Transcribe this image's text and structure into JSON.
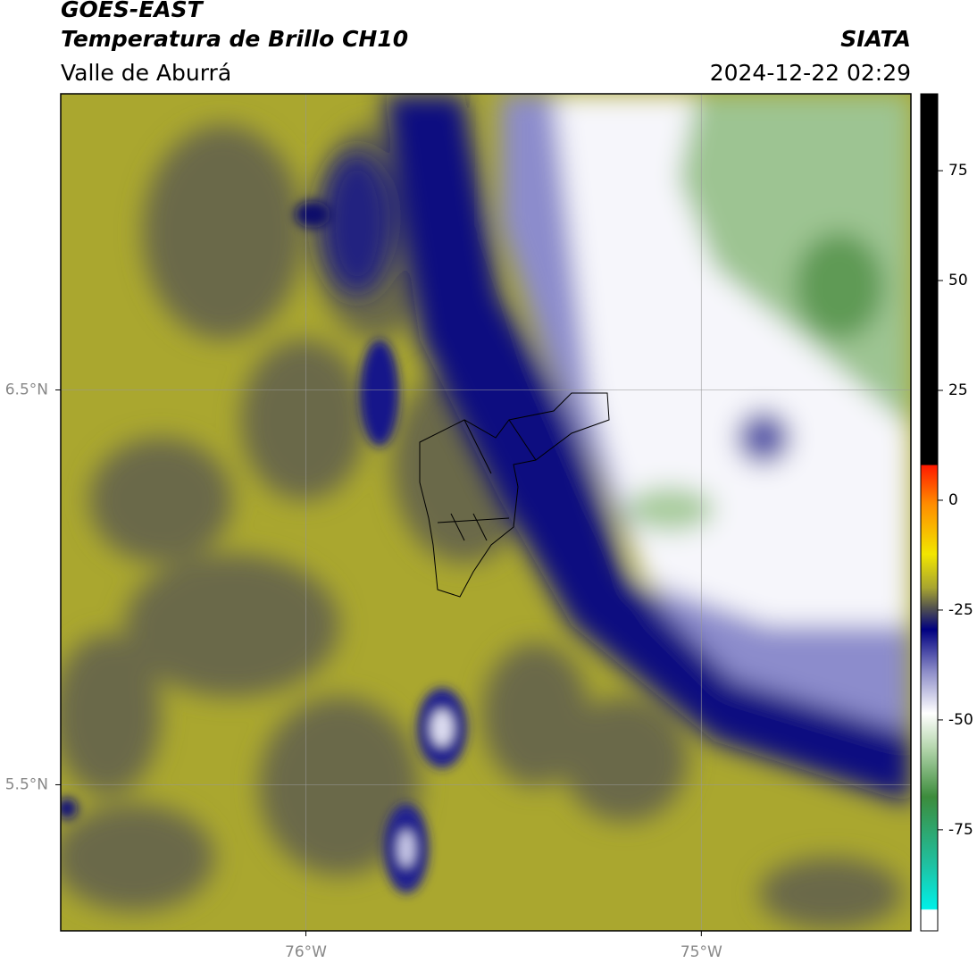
{
  "header": {
    "title": "GOES-EAST",
    "subtitle": "Temperatura de Brillo CH10",
    "region": "Valle de Aburrá",
    "source": "SIATA",
    "datetime": "2024-12-22 02:29"
  },
  "map": {
    "lonlim": [
      -76.62,
      -74.47
    ],
    "latlim": [
      5.13,
      7.25
    ],
    "lonticks": [
      {
        "value": -76,
        "label": "76°W"
      },
      {
        "value": -75,
        "label": "75°W"
      }
    ],
    "latticks": [
      {
        "value": 6.5,
        "label": "6.5°N"
      },
      {
        "value": 5.5,
        "label": "5.5°N"
      }
    ]
  },
  "colorbar": {
    "lim": [
      -98,
      92.5
    ],
    "ticks": [
      -75,
      -50,
      -25,
      0,
      25,
      50,
      75
    ]
  }
}
